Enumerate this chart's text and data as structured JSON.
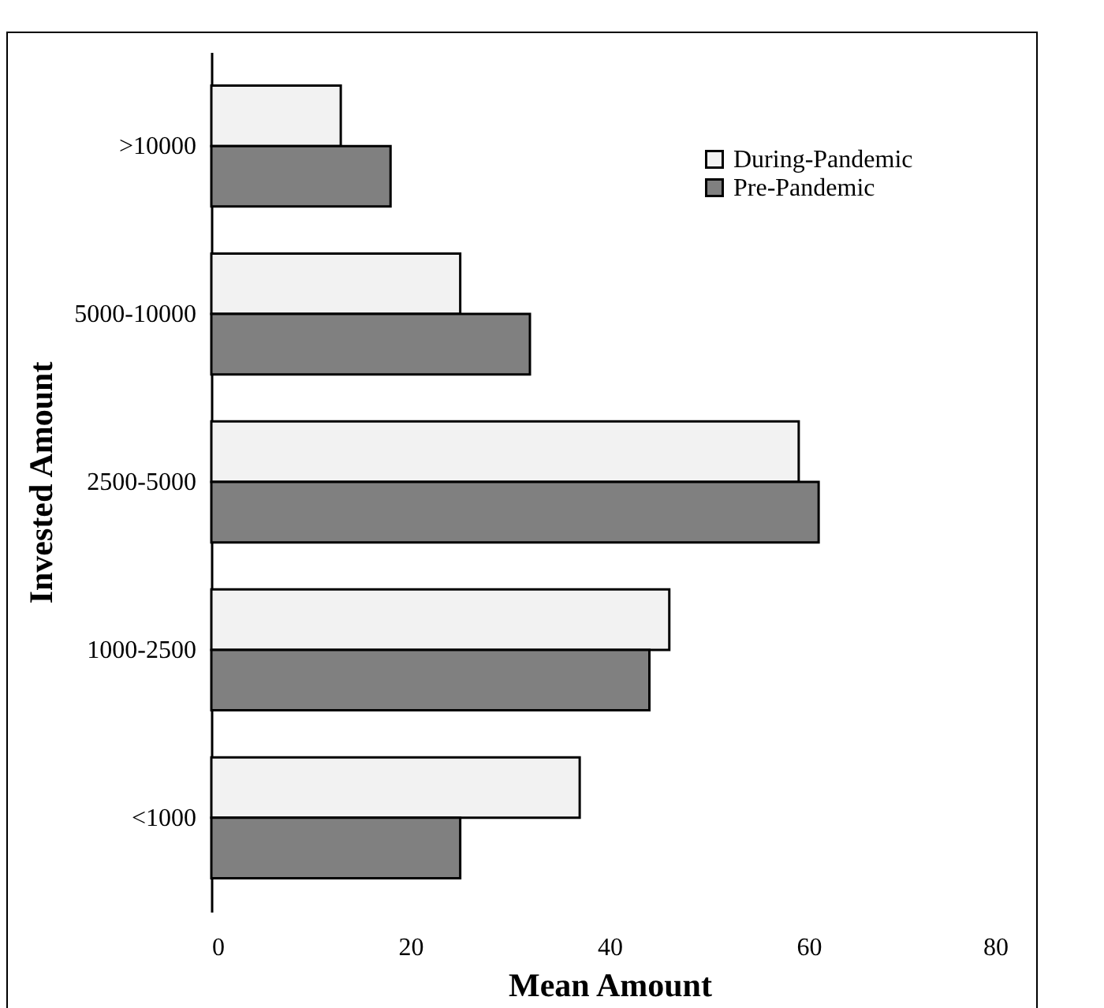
{
  "chart_data": {
    "type": "bar",
    "orientation": "horizontal",
    "xlabel": "Mean Amount",
    "ylabel": "Invested Amount",
    "categories": [
      ">10000",
      "5000-10000",
      "2500-5000",
      "1000-2500",
      "<1000"
    ],
    "series": [
      {
        "name": "During-Pandemic",
        "color": "#f2f2f2",
        "values": [
          13,
          25,
          59,
          46,
          37
        ]
      },
      {
        "name": "Pre-Pandemic",
        "color": "#808080",
        "values": [
          18,
          32,
          61,
          44,
          25
        ]
      }
    ],
    "xlim": [
      0,
      80
    ],
    "xticks": [
      0,
      20,
      40,
      60,
      80
    ],
    "grid": false,
    "legend": "top right"
  }
}
